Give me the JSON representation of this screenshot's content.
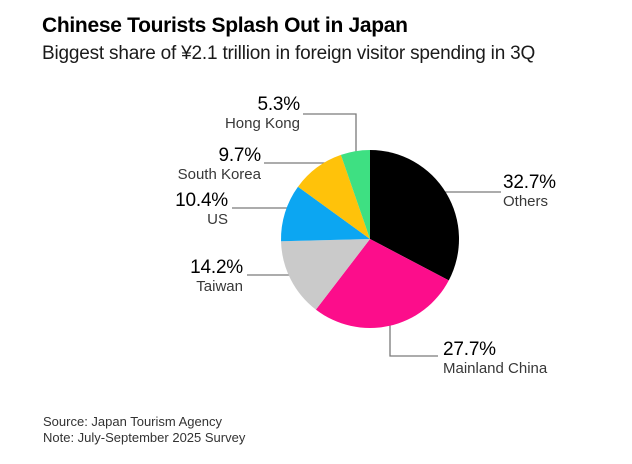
{
  "chart_data": {
    "type": "pie",
    "title": "Chinese Tourists Splash Out in Japan",
    "subtitle": "Biggest share of ¥2.1 trillion in foreign visitor spending in 3Q",
    "value_unit": "%",
    "start_angle": "12-oclock",
    "direction": "clockwise",
    "legend_position": "none",
    "label_style": "callout-with-leader-lines",
    "slices": [
      {
        "label": "Others",
        "value": 32.7,
        "pct_label": "32.7%",
        "color": "#000000"
      },
      {
        "label": "Mainland China",
        "value": 27.7,
        "pct_label": "27.7%",
        "color": "#FC0D8B"
      },
      {
        "label": "Taiwan",
        "value": 14.2,
        "pct_label": "14.2%",
        "color": "#CACACA"
      },
      {
        "label": "US",
        "value": 10.4,
        "pct_label": "10.4%",
        "color": "#0CA6F2"
      },
      {
        "label": "South Korea",
        "value": 9.7,
        "pct_label": "9.7%",
        "color": "#FFC20A"
      },
      {
        "label": "Hong Kong",
        "value": 5.3,
        "pct_label": "5.3%",
        "color": "#3EE082"
      }
    ]
  },
  "footer": {
    "source": "Source: Japan Tourism Agency",
    "note": "Note: July-September 2025 Survey"
  },
  "colors": {
    "background": "#ffffff",
    "leader_line": "#7a7a7a",
    "title_text": "#000000",
    "subtitle_text": "#1a1a1a",
    "percent_text": "#000000",
    "slice_name_text": "#383838",
    "footnote_text": "#333333"
  }
}
